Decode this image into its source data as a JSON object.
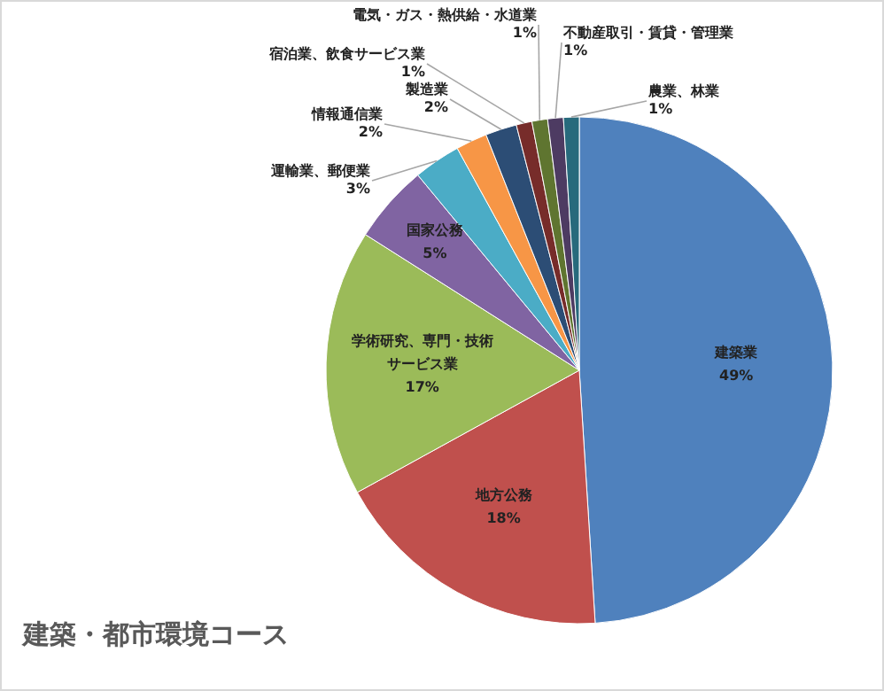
{
  "chart_data": {
    "type": "pie",
    "title": "建築・都市環境コース",
    "categories": [
      "建築業",
      "地方公務",
      "学術研究、専門・技術サービス業",
      "国家公務",
      "運輸業、郵便業",
      "情報通信業",
      "製造業",
      "宿泊業、飲食サービス業",
      "電気・ガス・熱供給・水道業",
      "不動産取引・賃貸・管理業",
      "農業、林業"
    ],
    "values": [
      49,
      18,
      17,
      5,
      3,
      2,
      2,
      1,
      1,
      1,
      1
    ],
    "value_labels": [
      "49%",
      "18%",
      "17%",
      "5%",
      "3%",
      "2%",
      "2%",
      "1%",
      "1%",
      "1%",
      "1%"
    ],
    "colors": [
      "#4f81bd",
      "#c0504d",
      "#9bbb59",
      "#8064a2",
      "#4bacc6",
      "#f79646",
      "#2c4d75",
      "#772c2a",
      "#5f7530",
      "#4d3b62",
      "#276a7c"
    ],
    "legend": false
  }
}
